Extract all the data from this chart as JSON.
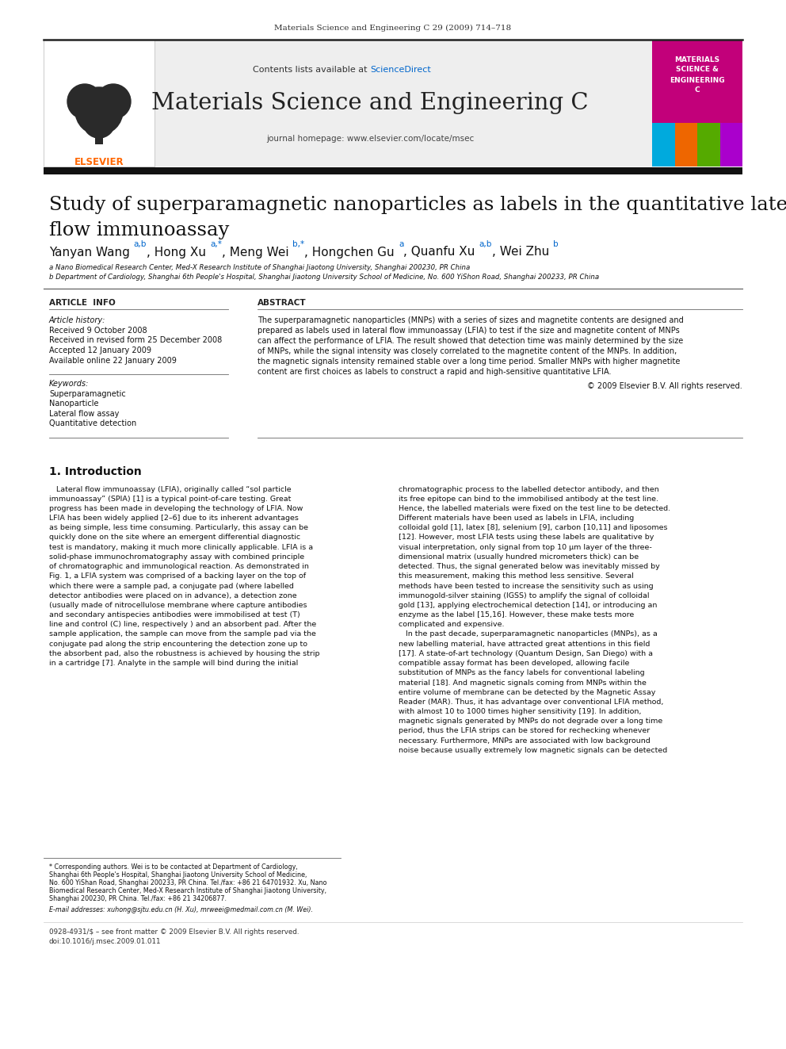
{
  "page_background": "#ffffff",
  "top_journal_ref": "Materials Science and Engineering C 29 (2009) 714–718",
  "header_bg": "#e8e8e8",
  "header_contents": "Contents lists available at",
  "header_sciencedirect": "ScienceDirect",
  "header_journal_name": "Materials Science and Engineering C",
  "header_homepage": "journal homepage: www.elsevier.com/locate/msec",
  "elsevier_logo_color": "#ff6600",
  "cover_bg": "#cc3399",
  "cover_text1": "MATERIALS",
  "cover_text2": "SCIENCE &",
  "cover_text3": "ENGINEERING",
  "cover_text4": "C",
  "thick_bar_color": "#1a1a1a",
  "article_title_line1": "Study of superparamagnetic nanoparticles as labels in the quantitative lateral",
  "article_title_line2": "flow immunoassay",
  "affil_a": "a Nano Biomedical Research Center, Med-X Research Institute of Shanghai Jiaotong University, Shanghai 200230, PR China",
  "affil_b": "b Department of Cardiology, Shanghai 6th People's Hospital, Shanghai Jiaotong University School of Medicine, No. 600 YiShon Road, Shanghai 200233, PR China",
  "section_article_info": "ARTICLE  INFO",
  "section_abstract": "ABSTRACT",
  "article_history_label": "Article history:",
  "received1": "Received 9 October 2008",
  "received2": "Received in revised form 25 December 2008",
  "accepted": "Accepted 12 January 2009",
  "available": "Available online 22 January 2009",
  "keywords_label": "Keywords:",
  "keyword1": "Superparamagnetic",
  "keyword2": "Nanoparticle",
  "keyword3": "Lateral flow assay",
  "keyword4": "Quantitative detection",
  "abstract_text_lines": [
    "The superparamagnetic nanoparticles (MNPs) with a series of sizes and magnetite contents are designed and",
    "prepared as labels used in lateral flow immunoassay (LFIA) to test if the size and magnetite content of MNPs",
    "can affect the performance of LFIA. The result showed that detection time was mainly determined by the size",
    "of MNPs, while the signal intensity was closely correlated to the magnetite content of the MNPs. In addition,",
    "the magnetic signals intensity remained stable over a long time period. Smaller MNPs with higher magnetite",
    "content are first choices as labels to construct a rapid and high-sensitive quantitative LFIA."
  ],
  "copyright": "© 2009 Elsevier B.V. All rights reserved.",
  "intro_heading": "1. Introduction",
  "intro_col1_lines": [
    "   Lateral flow immunoassay (LFIA), originally called “sol particle",
    "immunoassay” (SPIA) [1] is a typical point-of-care testing. Great",
    "progress has been made in developing the technology of LFIA. Now",
    "LFIA has been widely applied [2–6] due to its inherent advantages",
    "as being simple, less time consuming. Particularly, this assay can be",
    "quickly done on the site where an emergent differential diagnostic",
    "test is mandatory, making it much more clinically applicable. LFIA is a",
    "solid-phase immunochromatography assay with combined principle",
    "of chromatographic and immunological reaction. As demonstrated in",
    "Fig. 1, a LFIA system was comprised of a backing layer on the top of",
    "which there were a sample pad, a conjugate pad (where labelled",
    "detector antibodies were placed on in advance), a detection zone",
    "(usually made of nitrocellulose membrane where capture antibodies",
    "and secondary antispecies antibodies were immobilised at test (T)",
    "line and control (C) line, respectively ) and an absorbent pad. After the",
    "sample application, the sample can move from the sample pad via the",
    "conjugate pad along the strip encountering the detection zone up to",
    "the absorbent pad, also the robustness is achieved by housing the strip",
    "in a cartridge [7]. Analyte in the sample will bind during the initial"
  ],
  "intro_col2_lines": [
    "chromatographic process to the labelled detector antibody, and then",
    "its free epitope can bind to the immobilised antibody at the test line.",
    "Hence, the labelled materials were fixed on the test line to be detected.",
    "Different materials have been used as labels in LFIA, including",
    "colloidal gold [1], latex [8], selenium [9], carbon [10,11] and liposomes",
    "[12]. However, most LFIA tests using these labels are qualitative by",
    "visual interpretation, only signal from top 10 μm layer of the three-",
    "dimensional matrix (usually hundred micrometers thick) can be",
    "detected. Thus, the signal generated below was inevitably missed by",
    "this measurement, making this method less sensitive. Several",
    "methods have been tested to increase the sensitivity such as using",
    "immunogold-silver staining (IGSS) to amplify the signal of colloidal",
    "gold [13], applying electrochemical detection [14], or introducing an",
    "enzyme as the label [15,16]. However, these make tests more",
    "complicated and expensive.",
    "   In the past decade, superparamagnetic nanoparticles (MNPs), as a",
    "new labelling material, have attracted great attentions in this field",
    "[17]. A state-of-art technology (Quantum Design, San Diego) with a",
    "compatible assay format has been developed, allowing facile",
    "substitution of MNPs as the fancy labels for conventional labeling",
    "material [18]. And magnetic signals coming from MNPs within the",
    "entire volume of membrane can be detected by the Magnetic Assay",
    "Reader (MAR). Thus, it has advantage over conventional LFIA method,",
    "with almost 10 to 1000 times higher sensitivity [19]. In addition,",
    "magnetic signals generated by MNPs do not degrade over a long time",
    "period, thus the LFIA strips can be stored for rechecking whenever",
    "necessary. Furthermore, MNPs are associated with low background",
    "noise because usually extremely low magnetic signals can be detected"
  ],
  "footnote_lines": [
    "* Corresponding authors. Wei is to be contacted at Department of Cardiology,",
    "Shanghai 6th People's Hospital, Shanghai Jiaotong University School of Medicine,",
    "No. 600 YiShan Road, Shanghai 200233, PR China. Tel./fax: +86 21 64701932. Xu, Nano",
    "Biomedical Research Center, Med-X Research Institute of Shanghai Jiaotong University,",
    "Shanghai 200230, PR China. Tel./fax: +86 21 34206877."
  ],
  "footnote_email": "E-mail addresses: xuhong@sjtu.edu.cn (H. Xu), mrweei@medmail.com.cn (M. Wei).",
  "bottom_ref1": "0928-4931/$ – see front matter © 2009 Elsevier B.V. All rights reserved.",
  "bottom_ref2": "doi:10.1016/j.msec.2009.01.011",
  "link_color": "#0066cc",
  "text_color": "#111111"
}
